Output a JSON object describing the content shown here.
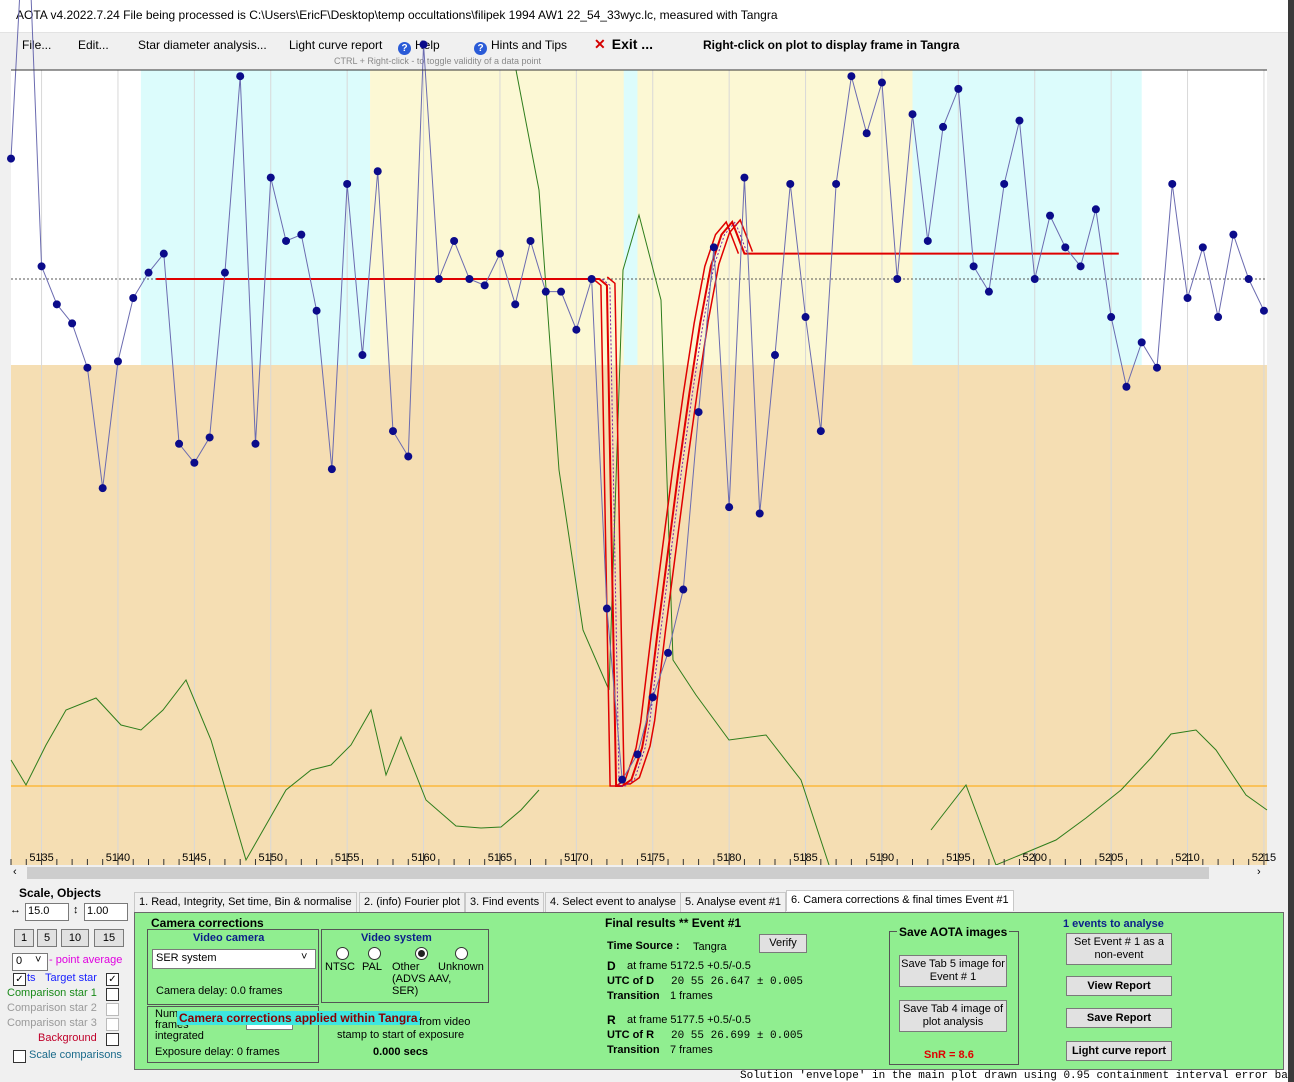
{
  "window": {
    "title": "AOTA v4.2022.7.24    File being processed is C:\\Users\\EricF\\Desktop\\temp occultations\\filipek 1994 AW1 22_54_33wyc.lc, measured with Tangra"
  },
  "menu": {
    "file": "File...",
    "edit": "Edit...",
    "star_diameter": "Star diameter analysis...",
    "light_curve_report": "Light curve report",
    "help": "Help",
    "hints": "Hints and Tips",
    "exit": "Exit ...",
    "right_click_hint": "Right-click on plot to display frame in Tangra",
    "ctrl_hint": "CTRL + Right-click  -  to toggle validity of a data point"
  },
  "chart_data": {
    "type": "line",
    "xlabel": "",
    "ylabel": "",
    "x_ticks": [
      5135,
      5140,
      5145,
      5150,
      5155,
      5160,
      5165,
      5170,
      5175,
      5180,
      5185,
      5190,
      5195,
      5200,
      5205,
      5210,
      5215
    ],
    "xlim": [
      5133,
      5215.2
    ],
    "target_star": {
      "x": [
        5133,
        5134,
        5135,
        5136,
        5137,
        5138,
        5139,
        5140,
        5141,
        5142,
        5143,
        5144,
        5145,
        5146,
        5147,
        5148,
        5149,
        5150,
        5151,
        5152,
        5153,
        5154,
        5155,
        5156,
        5157,
        5158,
        5159,
        5160,
        5161,
        5162,
        5163,
        5164,
        5165,
        5166,
        5167,
        5168,
        5169,
        5170,
        5171,
        5172,
        5173,
        5174,
        5175,
        5176,
        5177,
        5178,
        5179,
        5180,
        5181,
        5182,
        5183,
        5184,
        5185,
        5186,
        5187,
        5188,
        5189,
        5190,
        5191,
        5192,
        5193,
        5194,
        5195,
        5196,
        5197,
        5198,
        5199,
        5200,
        5201,
        5202,
        5203,
        5204,
        5205,
        5206,
        5207,
        5208,
        5209,
        5210,
        5211,
        5212,
        5213,
        5214,
        5215
      ],
      "y": [
        0.99,
        1.44,
        0.82,
        0.76,
        0.73,
        0.66,
        0.47,
        0.67,
        0.77,
        0.81,
        0.84,
        0.54,
        0.51,
        0.55,
        0.81,
        1.12,
        0.54,
        0.96,
        0.86,
        0.87,
        0.75,
        0.5,
        0.95,
        0.68,
        0.97,
        0.56,
        0.52,
        1.17,
        0.8,
        0.86,
        0.8,
        0.79,
        0.84,
        0.76,
        0.86,
        0.78,
        0.78,
        0.72,
        0.8,
        0.28,
        0.01,
        0.05,
        0.14,
        0.21,
        0.31,
        0.59,
        0.85,
        0.44,
        0.96,
        0.43,
        0.68,
        0.95,
        0.74,
        0.56,
        0.95,
        1.12,
        1.03,
        1.11,
        0.8,
        1.06,
        0.86,
        1.04,
        1.1,
        0.82,
        0.78,
        0.95,
        1.05,
        0.8,
        0.9,
        0.85,
        0.82,
        0.91,
        0.74,
        0.63,
        0.7,
        0.66,
        0.95,
        0.77,
        0.85,
        0.74,
        0.87,
        0.8,
        0.75
      ]
    },
    "fit_line": {
      "x": [
        5142.5,
        5171.5,
        5172.0,
        5172.6,
        5173.0,
        5173.6,
        5174.3,
        5174.6,
        5175.3,
        5176.0,
        5176.7,
        5177.4,
        5178.1,
        5178.8,
        5179.5,
        5180.2,
        5181.0,
        5205.5
      ],
      "y": [
        0.8,
        0.8,
        0.79,
        0.0,
        0.0,
        0.01,
        0.06,
        0.1,
        0.24,
        0.37,
        0.5,
        0.62,
        0.73,
        0.82,
        0.87,
        0.89,
        0.84,
        0.84
      ]
    },
    "baseline_level": 0.8,
    "bottom_level": 0.06,
    "grid": true,
    "legend": "none"
  },
  "tabs": [
    "1.  Read, Integrity, Set time, Bin & normalise",
    "2. (info)  Fourier plot",
    "3. Find events",
    "4. Select event to analyse",
    "5. Analyse event #1",
    "6. Camera corrections & final times Event #1"
  ],
  "left_panel": {
    "scale_objects": "Scale,  Objects",
    "scale_h": "15.0",
    "scale_v": "1.00",
    "zoom_buttons": [
      "1",
      "5",
      "10",
      "15"
    ],
    "point_average_value": "0",
    "point_average_label": "- point average",
    "target_label": "Target star",
    "target_prefix": "ts",
    "comp1": "Comparison star 1",
    "comp2": "Comparison star 2",
    "comp3": "Comparison star 3",
    "background": "Background",
    "scale_comparisons": "Scale comparisons"
  },
  "camera": {
    "title": "Camera corrections",
    "video_camera": "Video camera",
    "camera_select": "SER system",
    "camera_delay": "Camera delay: 0.0 frames",
    "video_system": "Video system",
    "ntsc": "NTSC",
    "pal": "PAL",
    "other": "Other (ADVS AAV, SER)",
    "unknown": "Unknown",
    "applied_banner": "Camera corrections applied within Tangra",
    "frames_integrated": "Num frames integrated",
    "from_video": "from video",
    "stamp_text": "stamp to start of exposure",
    "secs": "0.000 secs",
    "exposure_delay": "Exposure delay: 0 frames"
  },
  "results": {
    "title": "Final results  **  Event #1",
    "time_source_label": "Time Source :",
    "time_source": "Tangra",
    "verify": "Verify",
    "d_label": "D",
    "d_frame": "at frame 5172.5  +0.5/-0.5",
    "utc_d_label": "UTC of D",
    "utc_d": "20 55 26.647 ± 0.005",
    "transition_label": "Transition",
    "d_transition": "1 frames",
    "r_label": "R",
    "r_frame": "at frame 5177.5  +0.5/-0.5",
    "utc_r_label": "UTC of R",
    "utc_r": "20 55 26.699 ± 0.005",
    "r_transition": "7 frames"
  },
  "save": {
    "title": "Save AOTA images",
    "tab5": "Save Tab 5 image for Event # 1",
    "tab4": "Save Tab 4 image of plot analysis",
    "snr": "SnR = 8.6"
  },
  "events": {
    "title": "1  events to analyse",
    "set_event": "Set Event # 1 as a non-event",
    "view_report": "View Report",
    "save_report": "Save Report",
    "lc_report": "Light curve report"
  },
  "status_text": "Solution 'envelope' in the main plot drawn using 0.95 containment interval error ba"
}
